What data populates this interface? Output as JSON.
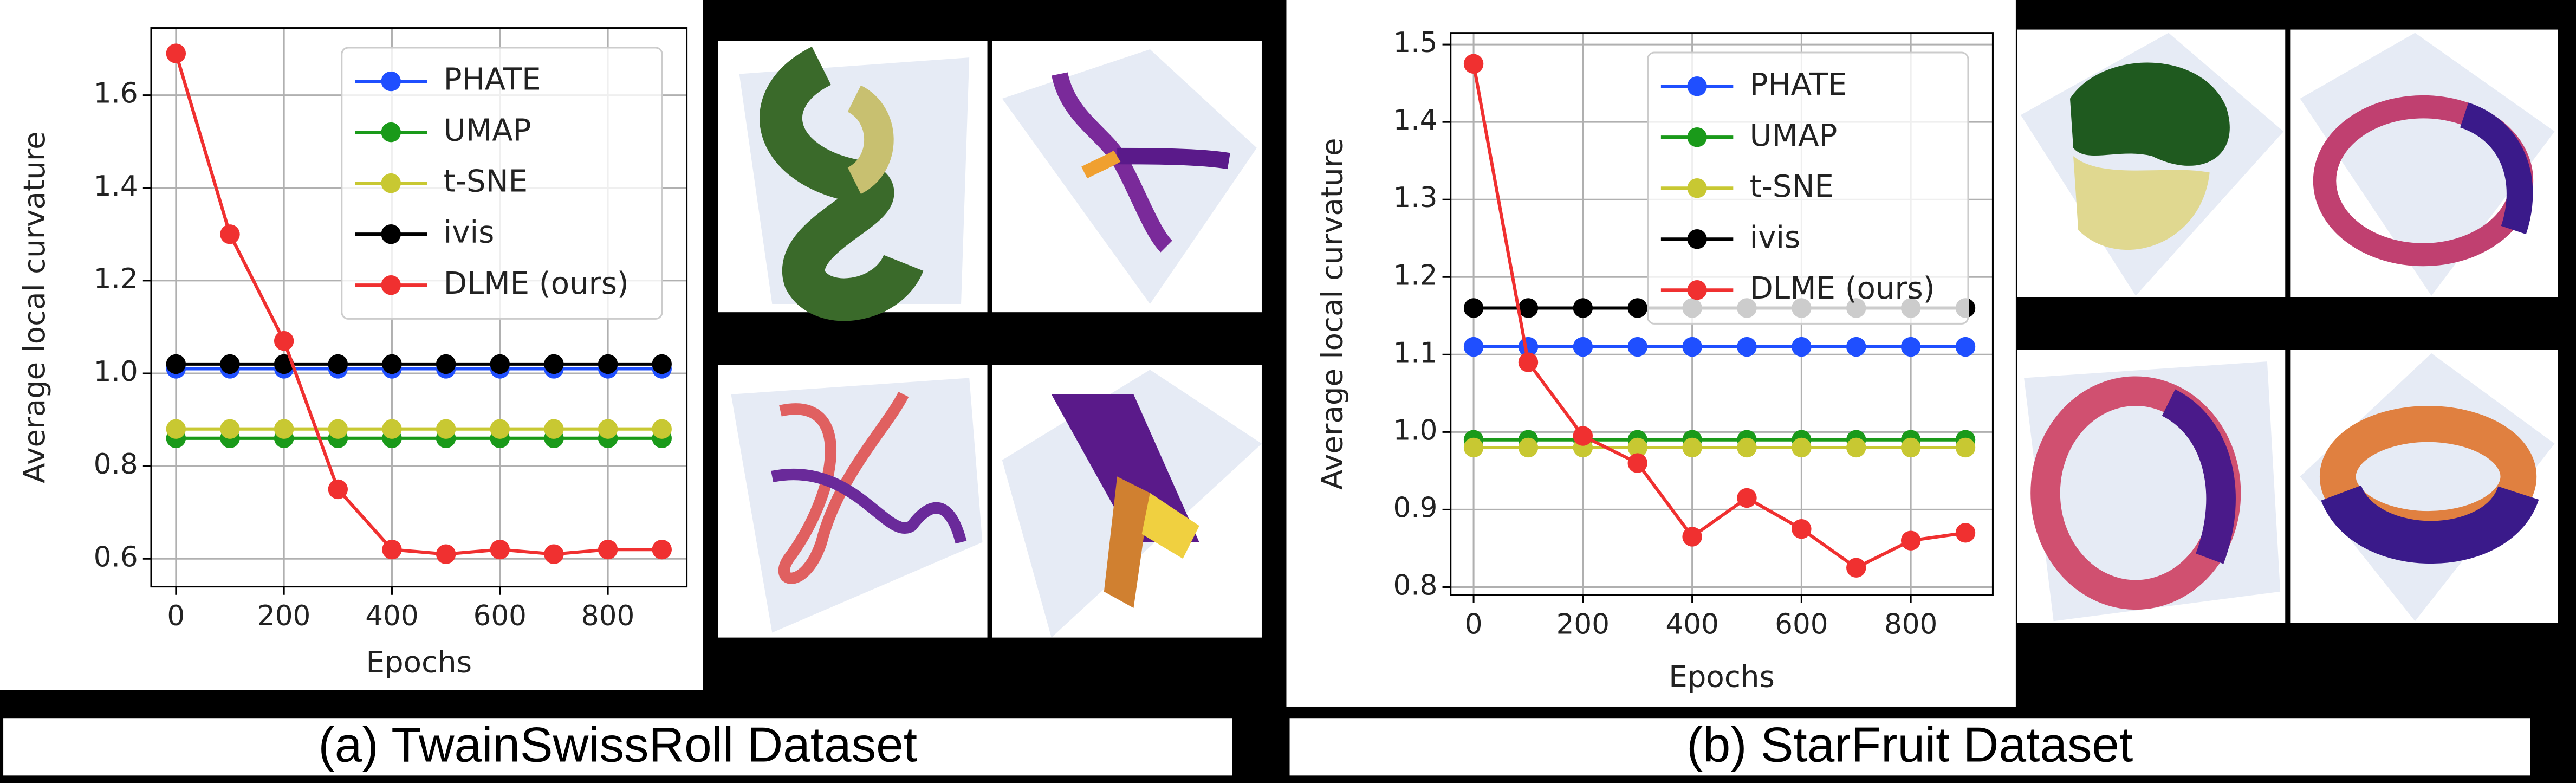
{
  "chart_data": [
    {
      "type": "line",
      "caption": "(a) TwainSwissRoll Dataset",
      "xlabel": "Epochs",
      "ylabel": "Average local curvature",
      "x": [
        0,
        100,
        200,
        300,
        400,
        500,
        600,
        700,
        800,
        900
      ],
      "xlim": [
        -46,
        946
      ],
      "xticks": [
        0,
        200,
        400,
        600,
        800
      ],
      "ylim": [
        0.54,
        1.745
      ],
      "yticks": [
        0.6,
        0.8,
        {
          "value": 1.0,
          "label": "1.0"
        },
        1.2,
        1.4,
        1.6
      ],
      "grid": true,
      "legend": "upper right",
      "series": [
        {
          "name": "PHATE",
          "color": "#1f4fff",
          "values": [
            1.01,
            1.01,
            1.01,
            1.01,
            1.01,
            1.01,
            1.01,
            1.01,
            1.01,
            1.01
          ]
        },
        {
          "name": "UMAP",
          "color": "#1a9a1a",
          "values": [
            0.86,
            0.86,
            0.86,
            0.86,
            0.86,
            0.86,
            0.86,
            0.86,
            0.86,
            0.86
          ]
        },
        {
          "name": "t-SNE",
          "color": "#c8c832",
          "values": [
            0.88,
            0.88,
            0.88,
            0.88,
            0.88,
            0.88,
            0.88,
            0.88,
            0.88,
            0.88
          ]
        },
        {
          "name": "ivis",
          "color": "#000000",
          "values": [
            1.02,
            1.02,
            1.02,
            1.02,
            1.02,
            1.02,
            1.02,
            1.02,
            1.02,
            1.02
          ]
        },
        {
          "name": "DLME (ours)",
          "color": "#f03030",
          "values": [
            1.69,
            1.3,
            1.07,
            0.75,
            0.62,
            0.61,
            0.62,
            0.61,
            0.62,
            0.62
          ]
        }
      ]
    },
    {
      "type": "line",
      "caption": "(b) StarFruit Dataset",
      "xlabel": "Epochs",
      "ylabel": "Average local curvature",
      "x": [
        0,
        100,
        200,
        300,
        400,
        500,
        600,
        700,
        800,
        900
      ],
      "xlim": [
        -42,
        950
      ],
      "xticks": [
        0,
        200,
        400,
        600,
        800
      ],
      "ylim": [
        0.79,
        1.515
      ],
      "yticks": [
        0.8,
        0.9,
        {
          "value": 1.0,
          "label": "1.0"
        },
        1.1,
        1.2,
        1.3,
        1.4,
        1.5
      ],
      "grid": true,
      "legend": "upper right",
      "series": [
        {
          "name": "PHATE",
          "color": "#1f4fff",
          "values": [
            1.11,
            1.11,
            1.11,
            1.11,
            1.11,
            1.11,
            1.11,
            1.11,
            1.11,
            1.11
          ]
        },
        {
          "name": "UMAP",
          "color": "#1a9a1a",
          "values": [
            0.99,
            0.99,
            0.99,
            0.99,
            0.99,
            0.99,
            0.99,
            0.99,
            0.99,
            0.99
          ]
        },
        {
          "name": "t-SNE",
          "color": "#c8c832",
          "values": [
            0.98,
            0.98,
            0.98,
            0.98,
            0.98,
            0.98,
            0.98,
            0.98,
            0.98,
            0.98
          ]
        },
        {
          "name": "ivis",
          "color": "#000000",
          "values": [
            1.16,
            1.16,
            1.16,
            1.16,
            1.16,
            1.16,
            1.16,
            1.16,
            1.16,
            1.16
          ]
        },
        {
          "name": "DLME (ours)",
          "color": "#f03030",
          "values": [
            1.475,
            1.09,
            0.995,
            0.96,
            0.865,
            0.915,
            0.875,
            0.825,
            0.86,
            0.87
          ]
        }
      ]
    }
  ]
}
